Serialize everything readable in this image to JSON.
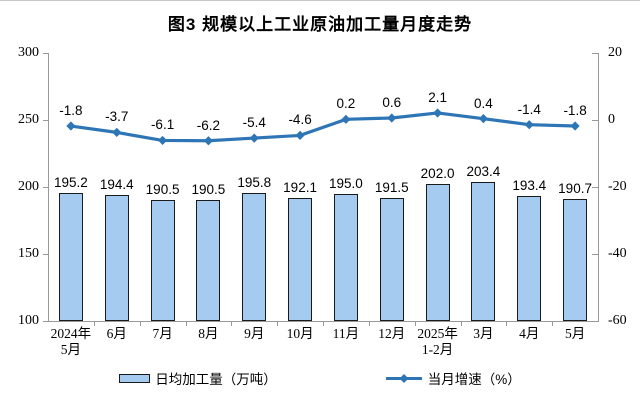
{
  "title": "图3 规模以上工业原油加工量月度走势",
  "chart_data": {
    "type": "bar",
    "subtype": "bar+line dual-axis combo",
    "title": "图3 规模以上工业原油加工量月度走势",
    "categories": [
      [
        "2024年",
        "5月"
      ],
      [
        "6月"
      ],
      [
        "7月"
      ],
      [
        "8月"
      ],
      [
        "9月"
      ],
      [
        "10月"
      ],
      [
        "11月"
      ],
      [
        "12月"
      ],
      [
        "2025年",
        "1-2月"
      ],
      [
        "3月"
      ],
      [
        "4月"
      ],
      [
        "5月"
      ]
    ],
    "series": [
      {
        "name": "日均加工量（万吨）",
        "type": "bar",
        "axis": "left",
        "values": [
          195.2,
          194.4,
          190.5,
          190.5,
          195.8,
          192.1,
          195.0,
          191.5,
          202.0,
          203.4,
          193.4,
          190.7
        ],
        "labels": [
          "195.2",
          "194.4",
          "190.5",
          "190.5",
          "195.8",
          "192.1",
          "195.0",
          "191.5",
          "202.0",
          "203.4",
          "193.4",
          "190.7"
        ]
      },
      {
        "name": "当月增速（%）",
        "type": "line",
        "axis": "right",
        "values": [
          -1.8,
          -3.7,
          -6.1,
          -6.2,
          -5.4,
          -4.6,
          0.2,
          0.6,
          2.1,
          0.4,
          -1.4,
          -1.8
        ],
        "labels": [
          "-1.8",
          "-3.7",
          "-6.1",
          "-6.2",
          "-5.4",
          "-4.6",
          "0.2",
          "0.6",
          "2.1",
          "0.4",
          "-1.4",
          "-1.8"
        ]
      }
    ],
    "left_axis": {
      "ticks": [
        "300",
        "250",
        "200",
        "150",
        "100"
      ],
      "range": [
        100,
        300
      ]
    },
    "right_axis": {
      "ticks": [
        "20",
        "0",
        "-20",
        "-40",
        "-60"
      ],
      "range": [
        -60,
        20
      ]
    },
    "xlabel": "",
    "ylabel_left": "",
    "ylabel_right": "",
    "grid": false,
    "legend_position": "bottom",
    "colors": {
      "bar_fill": "#A6CBF0",
      "bar_border": "#1A1A1A",
      "line": "#2E75B6",
      "axis": "#999999",
      "text": "#000000"
    }
  }
}
